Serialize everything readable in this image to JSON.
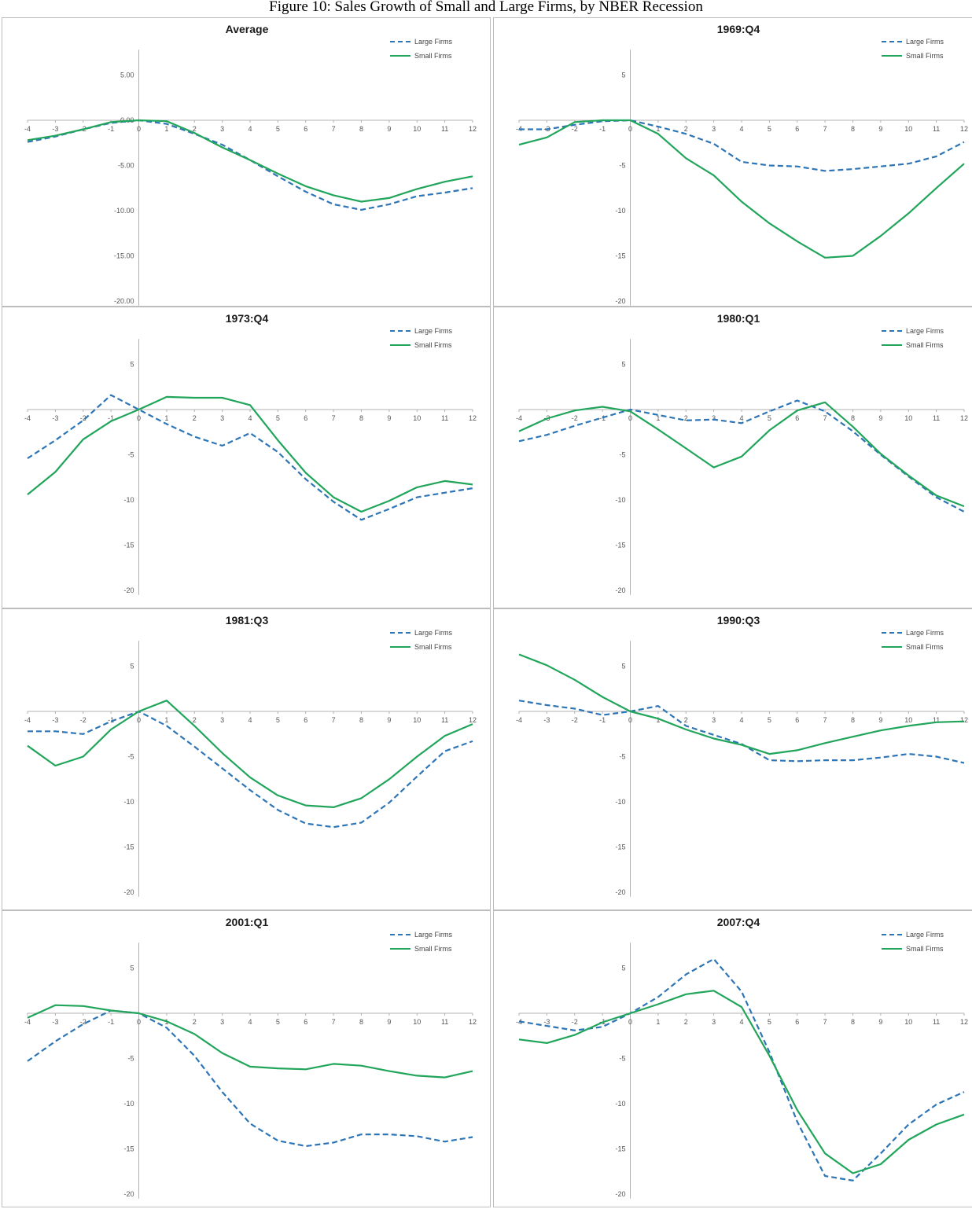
{
  "figure": {
    "title": "Figure 10: Sales Growth of Small and Large Firms, by NBER Recession"
  },
  "colors": {
    "large": "#2e75b6",
    "small": "#21a55b",
    "axis": "#b0b0b0"
  },
  "chart_data": [
    {
      "type": "line",
      "title": "Average",
      "x": [
        -4,
        -3,
        -2,
        -1,
        0,
        1,
        2,
        3,
        4,
        5,
        6,
        7,
        8,
        9,
        10,
        11,
        12
      ],
      "ylim": [
        -20,
        5
      ],
      "yticks": [
        5,
        0,
        -5,
        -10,
        -15,
        -20
      ],
      "ytick_labels": [
        "5.00",
        "0.00",
        "-5.00",
        "-10.00",
        "-15.00",
        "-20.00"
      ],
      "legend": "top-right",
      "series": [
        {
          "name": "Large Firms",
          "style": "dashed",
          "values": [
            -2.4,
            -1.8,
            -1.0,
            -0.3,
            0.0,
            -0.4,
            -1.5,
            -2.7,
            -4.4,
            -6.2,
            -7.9,
            -9.3,
            -9.9,
            -9.3,
            -8.4,
            -8.0,
            -7.5
          ]
        },
        {
          "name": "Small Firms",
          "style": "solid",
          "values": [
            -2.2,
            -1.7,
            -1.0,
            -0.2,
            0.0,
            -0.1,
            -1.4,
            -3.0,
            -4.4,
            -5.9,
            -7.3,
            -8.3,
            -9.0,
            -8.6,
            -7.6,
            -6.8,
            -6.2
          ]
        }
      ]
    },
    {
      "type": "line",
      "title": "1969:Q4",
      "x": [
        -4,
        -3,
        -2,
        -1,
        0,
        1,
        2,
        3,
        4,
        5,
        6,
        7,
        8,
        9,
        10,
        11,
        12
      ],
      "ylim": [
        -20,
        5
      ],
      "yticks": [
        5,
        0,
        -5,
        -10,
        -15,
        -20
      ],
      "ytick_labels": [
        "5",
        "",
        "-5",
        "-10",
        "-15",
        "-20"
      ],
      "legend": "top-right",
      "series": [
        {
          "name": "Large Firms",
          "style": "dashed",
          "values": [
            -1.0,
            -1.0,
            -0.5,
            -0.1,
            0.0,
            -0.7,
            -1.5,
            -2.6,
            -4.6,
            -5.0,
            -5.1,
            -5.6,
            -5.4,
            -5.1,
            -4.8,
            -4.0,
            -2.4
          ]
        },
        {
          "name": "Small Firms",
          "style": "solid",
          "values": [
            -2.7,
            -1.9,
            -0.2,
            0.0,
            0.0,
            -1.5,
            -4.2,
            -6.1,
            -9.0,
            -11.4,
            -13.4,
            -15.2,
            -15.0,
            -12.8,
            -10.3,
            -7.5,
            -4.8
          ]
        }
      ]
    },
    {
      "type": "line",
      "title": "1973:Q4",
      "x": [
        -4,
        -3,
        -2,
        -1,
        0,
        1,
        2,
        3,
        4,
        5,
        6,
        7,
        8,
        9,
        10,
        11,
        12
      ],
      "ylim": [
        -20,
        5
      ],
      "yticks": [
        5,
        0,
        -5,
        -10,
        -15,
        -20
      ],
      "ytick_labels": [
        "5",
        "",
        "-5",
        "-10",
        "-15",
        "-20"
      ],
      "legend": "top-right",
      "series": [
        {
          "name": "Large Firms",
          "style": "dashed",
          "values": [
            -5.4,
            -3.4,
            -1.2,
            1.6,
            0.0,
            -1.6,
            -3.0,
            -4.0,
            -2.6,
            -4.7,
            -7.7,
            -10.2,
            -12.2,
            -11.0,
            -9.7,
            -9.2,
            -8.7
          ]
        },
        {
          "name": "Small Firms",
          "style": "solid",
          "values": [
            -9.4,
            -6.9,
            -3.3,
            -1.3,
            0.0,
            1.4,
            1.3,
            1.3,
            0.5,
            -3.4,
            -7.0,
            -9.7,
            -11.3,
            -10.1,
            -8.6,
            -7.9,
            -8.3
          ]
        }
      ]
    },
    {
      "type": "line",
      "title": "1980:Q1",
      "x": [
        -4,
        -3,
        -2,
        -1,
        0,
        1,
        2,
        3,
        4,
        5,
        6,
        7,
        8,
        9,
        10,
        11,
        12
      ],
      "ylim": [
        -20,
        5
      ],
      "yticks": [
        5,
        0,
        -5,
        -10,
        -15,
        -20
      ],
      "ytick_labels": [
        "5",
        "",
        "-5",
        "-10",
        "-15",
        "-20"
      ],
      "legend": "top-right",
      "series": [
        {
          "name": "Large Firms",
          "style": "dashed",
          "values": [
            -3.5,
            -2.8,
            -1.8,
            -0.9,
            0.0,
            -0.6,
            -1.2,
            -1.1,
            -1.5,
            -0.2,
            1.0,
            -0.2,
            -2.4,
            -5.0,
            -7.4,
            -9.7,
            -11.3
          ]
        },
        {
          "name": "Small Firms",
          "style": "solid",
          "values": [
            -2.4,
            -1.0,
            -0.1,
            0.3,
            -0.2,
            -2.2,
            -4.3,
            -6.4,
            -5.2,
            -2.3,
            -0.1,
            0.8,
            -1.9,
            -4.9,
            -7.3,
            -9.5,
            -10.7
          ]
        }
      ]
    },
    {
      "type": "line",
      "title": "1981:Q3",
      "x": [
        -4,
        -3,
        -2,
        -1,
        0,
        1,
        2,
        3,
        4,
        5,
        6,
        7,
        8,
        9,
        10,
        11,
        12
      ],
      "ylim": [
        -20,
        5
      ],
      "yticks": [
        5,
        0,
        -5,
        -10,
        -15,
        -20
      ],
      "ytick_labels": [
        "5",
        "",
        "-5",
        "-10",
        "-15",
        "-20"
      ],
      "legend": "top-right",
      "series": [
        {
          "name": "Large Firms",
          "style": "dashed",
          "values": [
            -2.2,
            -2.2,
            -2.5,
            -1.1,
            0.0,
            -1.6,
            -3.9,
            -6.3,
            -8.7,
            -10.9,
            -12.4,
            -12.8,
            -12.3,
            -10.1,
            -7.2,
            -4.4,
            -3.3
          ]
        },
        {
          "name": "Small Firms",
          "style": "solid",
          "values": [
            -3.8,
            -6.0,
            -5.0,
            -2.0,
            0.0,
            1.2,
            -1.6,
            -4.6,
            -7.3,
            -9.3,
            -10.4,
            -10.6,
            -9.6,
            -7.5,
            -5.0,
            -2.7,
            -1.4
          ]
        }
      ]
    },
    {
      "type": "line",
      "title": "1990:Q3",
      "x": [
        -4,
        -3,
        -2,
        -1,
        0,
        1,
        2,
        3,
        4,
        5,
        6,
        7,
        8,
        9,
        10,
        11,
        12
      ],
      "ylim": [
        -20,
        5
      ],
      "yticks": [
        5,
        0,
        -5,
        -10,
        -15,
        -20
      ],
      "ytick_labels": [
        "5",
        "",
        "-5",
        "-10",
        "-15",
        "-20"
      ],
      "legend": "top-right",
      "series": [
        {
          "name": "Large Firms",
          "style": "dashed",
          "values": [
            1.2,
            0.7,
            0.3,
            -0.4,
            0.0,
            0.6,
            -1.6,
            -2.6,
            -3.6,
            -5.4,
            -5.5,
            -5.4,
            -5.4,
            -5.1,
            -4.7,
            -5.0,
            -5.7
          ]
        },
        {
          "name": "Small Firms",
          "style": "solid",
          "values": [
            6.3,
            5.1,
            3.5,
            1.6,
            0.0,
            -0.8,
            -2.0,
            -3.0,
            -3.7,
            -4.7,
            -4.3,
            -3.5,
            -2.8,
            -2.1,
            -1.6,
            -1.2,
            -1.1
          ]
        }
      ]
    },
    {
      "type": "line",
      "title": "2001:Q1",
      "x": [
        -4,
        -3,
        -2,
        -1,
        0,
        1,
        2,
        3,
        4,
        5,
        6,
        7,
        8,
        9,
        10,
        11,
        12
      ],
      "ylim": [
        -20,
        5
      ],
      "yticks": [
        5,
        0,
        -5,
        -10,
        -15,
        -20
      ],
      "ytick_labels": [
        "5",
        "",
        "-5",
        "-10",
        "-15",
        "-20"
      ],
      "legend": "top-right",
      "series": [
        {
          "name": "Large Firms",
          "style": "dashed",
          "values": [
            -5.3,
            -3.1,
            -1.2,
            0.3,
            0.0,
            -1.6,
            -4.7,
            -8.7,
            -12.2,
            -14.1,
            -14.7,
            -14.3,
            -13.4,
            -13.4,
            -13.6,
            -14.2,
            -13.7
          ]
        },
        {
          "name": "Small Firms",
          "style": "solid",
          "values": [
            -0.5,
            0.9,
            0.8,
            0.3,
            0.0,
            -0.9,
            -2.3,
            -4.4,
            -5.9,
            -6.1,
            -6.2,
            -5.6,
            -5.8,
            -6.4,
            -6.9,
            -7.1,
            -6.4
          ]
        }
      ]
    },
    {
      "type": "line",
      "title": "2007:Q4",
      "x": [
        -4,
        -3,
        -2,
        -1,
        0,
        1,
        2,
        3,
        4,
        5,
        6,
        7,
        8,
        9,
        10,
        11,
        12
      ],
      "ylim": [
        -20,
        5
      ],
      "yticks": [
        5,
        0,
        -5,
        -10,
        -15,
        -20
      ],
      "ytick_labels": [
        "5",
        "",
        "-5",
        "-10",
        "-15",
        "-20"
      ],
      "legend": "top-right",
      "series": [
        {
          "name": "Large Firms",
          "style": "dashed",
          "values": [
            -0.9,
            -1.4,
            -1.9,
            -1.5,
            0.0,
            1.8,
            4.3,
            6.0,
            2.4,
            -4.3,
            -12.0,
            -18.0,
            -18.5,
            -15.5,
            -12.3,
            -10.1,
            -8.7
          ]
        },
        {
          "name": "Small Firms",
          "style": "solid",
          "values": [
            -2.9,
            -3.3,
            -2.4,
            -1.0,
            0.0,
            1.0,
            2.1,
            2.5,
            0.7,
            -4.7,
            -10.7,
            -15.5,
            -17.7,
            -16.7,
            -14.0,
            -12.3,
            -11.2
          ]
        }
      ]
    }
  ]
}
